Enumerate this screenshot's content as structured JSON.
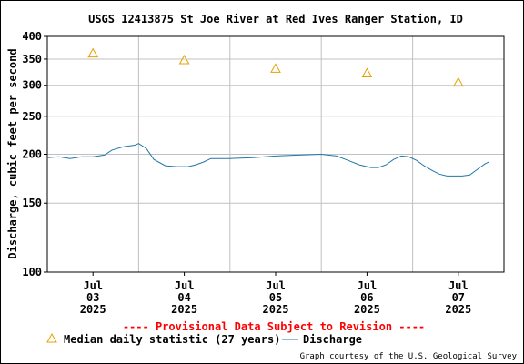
{
  "chart_data": {
    "type": "line",
    "title": "USGS 12413875 St Joe River at Red Ives Ranger Station, ID",
    "ylabel": "Discharge, cubic feet per second",
    "xlabel": "",
    "yscale": "log",
    "ylim": [
      100,
      400
    ],
    "yticks": [
      {
        "value": 100,
        "label": "100"
      },
      {
        "value": 150,
        "label": "150"
      },
      {
        "value": 200,
        "label": "200"
      },
      {
        "value": 250,
        "label": "250"
      },
      {
        "value": 300,
        "label": "300"
      },
      {
        "value": 350,
        "label": "350"
      },
      {
        "value": 400,
        "label": "400"
      }
    ],
    "xlim": [
      "2025-07-02T12:00",
      "2025-07-07T12:00"
    ],
    "xticks": [
      {
        "value": "2025-07-03T00:00",
        "lines": [
          "Jul",
          "03",
          "2025"
        ]
      },
      {
        "value": "2025-07-04T00:00",
        "lines": [
          "Jul",
          "04",
          "2025"
        ]
      },
      {
        "value": "2025-07-05T00:00",
        "lines": [
          "Jul",
          "05",
          "2025"
        ]
      },
      {
        "value": "2025-07-06T00:00",
        "lines": [
          "Jul",
          "06",
          "2025"
        ]
      },
      {
        "value": "2025-07-07T00:00",
        "lines": [
          "Jul",
          "07",
          "2025"
        ]
      }
    ],
    "grid": true,
    "series": [
      {
        "name": "Median daily statistic (27 years)",
        "kind": "marker",
        "marker": "triangle",
        "color": "#e8a000",
        "points": [
          {
            "x": "2025-07-03T00:00",
            "y": 362
          },
          {
            "x": "2025-07-04T00:00",
            "y": 348
          },
          {
            "x": "2025-07-05T00:00",
            "y": 331
          },
          {
            "x": "2025-07-06T00:00",
            "y": 322
          },
          {
            "x": "2025-07-07T00:00",
            "y": 305
          }
        ]
      },
      {
        "name": "Discharge",
        "kind": "line",
        "color": "#1f77a8",
        "points": [
          {
            "x": "2025-07-02T12:00",
            "y": 196
          },
          {
            "x": "2025-07-02T15:00",
            "y": 197
          },
          {
            "x": "2025-07-02T18:00",
            "y": 195
          },
          {
            "x": "2025-07-02T21:00",
            "y": 197
          },
          {
            "x": "2025-07-03T00:00",
            "y": 197
          },
          {
            "x": "2025-07-03T03:00",
            "y": 199
          },
          {
            "x": "2025-07-03T05:00",
            "y": 205
          },
          {
            "x": "2025-07-03T08:00",
            "y": 209
          },
          {
            "x": "2025-07-03T11:00",
            "y": 211
          },
          {
            "x": "2025-07-03T12:00",
            "y": 213
          },
          {
            "x": "2025-07-03T14:00",
            "y": 207
          },
          {
            "x": "2025-07-03T16:00",
            "y": 194
          },
          {
            "x": "2025-07-03T19:00",
            "y": 187
          },
          {
            "x": "2025-07-03T22:00",
            "y": 186
          },
          {
            "x": "2025-07-04T01:00",
            "y": 186
          },
          {
            "x": "2025-07-04T03:00",
            "y": 188
          },
          {
            "x": "2025-07-04T05:00",
            "y": 191
          },
          {
            "x": "2025-07-04T07:00",
            "y": 195
          },
          {
            "x": "2025-07-04T12:00",
            "y": 195
          },
          {
            "x": "2025-07-04T18:00",
            "y": 196
          },
          {
            "x": "2025-07-05T00:00",
            "y": 198
          },
          {
            "x": "2025-07-05T06:00",
            "y": 199
          },
          {
            "x": "2025-07-05T12:00",
            "y": 200
          },
          {
            "x": "2025-07-05T16:00",
            "y": 198
          },
          {
            "x": "2025-07-05T19:00",
            "y": 193
          },
          {
            "x": "2025-07-05T22:00",
            "y": 188
          },
          {
            "x": "2025-07-06T01:00",
            "y": 185
          },
          {
            "x": "2025-07-06T03:00",
            "y": 185
          },
          {
            "x": "2025-07-06T05:00",
            "y": 188
          },
          {
            "x": "2025-07-06T07:00",
            "y": 194
          },
          {
            "x": "2025-07-06T09:00",
            "y": 198
          },
          {
            "x": "2025-07-06T11:00",
            "y": 197
          },
          {
            "x": "2025-07-06T13:00",
            "y": 193
          },
          {
            "x": "2025-07-06T15:00",
            "y": 187
          },
          {
            "x": "2025-07-06T17:00",
            "y": 182
          },
          {
            "x": "2025-07-06T19:00",
            "y": 178
          },
          {
            "x": "2025-07-06T21:00",
            "y": 176
          },
          {
            "x": "2025-07-06T23:00",
            "y": 176
          },
          {
            "x": "2025-07-07T01:00",
            "y": 176
          },
          {
            "x": "2025-07-07T03:00",
            "y": 177
          },
          {
            "x": "2025-07-07T05:00",
            "y": 183
          },
          {
            "x": "2025-07-07T07:00",
            "y": 189
          },
          {
            "x": "2025-07-07T08:00",
            "y": 191
          }
        ]
      }
    ],
    "annotations": [
      "---- Provisional Data Subject to Revision ----"
    ],
    "legend": {
      "position": "bottom-left"
    },
    "credit": "Graph courtesy of the U.S. Geological Survey"
  }
}
